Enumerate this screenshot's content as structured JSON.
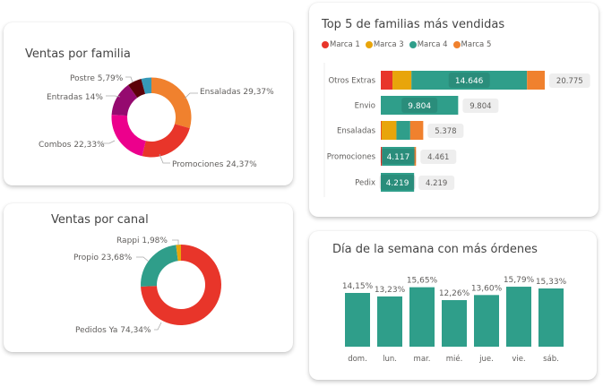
{
  "chart_data": [
    {
      "id": "familia",
      "type": "pie",
      "title": "Ventas por familia",
      "donut": true,
      "slices": [
        {
          "label": "Ensaladas",
          "value": 29.37,
          "display": "Ensaladas 29,37%",
          "color": "#f0812e"
        },
        {
          "label": "Promociones",
          "value": 24.37,
          "display": "Promociones 24,37%",
          "color": "#e8352a"
        },
        {
          "label": "Combos",
          "value": 22.33,
          "display": "Combos 22,33%",
          "color": "#ec008c"
        },
        {
          "label": "Entradas",
          "value": 14.0,
          "display": "Entradas 14%",
          "color": "#950a6f"
        },
        {
          "label": "Postre",
          "value": 5.79,
          "display": "Postre 5,79%",
          "color": "#5c0008"
        },
        {
          "label": "",
          "value": 4.14,
          "display": "",
          "color": "#3599b8"
        }
      ]
    },
    {
      "id": "canal",
      "type": "pie",
      "title": "Ventas por canal",
      "donut": true,
      "slices": [
        {
          "label": "Pedidos Ya",
          "value": 74.34,
          "display": "Pedidos Ya 74,34%",
          "color": "#e8352a"
        },
        {
          "label": "Propio",
          "value": 23.68,
          "display": "Propio 23,68%",
          "color": "#2f9e8a"
        },
        {
          "label": "Rappi",
          "value": 1.98,
          "display": "Rappi 1,98%",
          "color": "#e8a50b"
        }
      ]
    },
    {
      "id": "top5",
      "type": "bar",
      "orientation": "horizontal",
      "stacked": true,
      "title": "Top 5 de familias más vendidas",
      "legend_position": "top-left",
      "categories": [
        "Otros Extras",
        "Envio",
        "Ensaladas",
        "Promociones",
        "Pedix"
      ],
      "series": [
        {
          "name": "Marca 1",
          "color": "#e8352a",
          "values": [
            1480,
            0,
            80,
            150,
            0
          ]
        },
        {
          "name": "Marca 3",
          "color": "#e8a50b",
          "values": [
            2400,
            0,
            1900,
            0,
            0
          ]
        },
        {
          "name": "Marca 4",
          "color": "#2f9e8a",
          "values": [
            14646,
            9804,
            1750,
            4117,
            4219
          ]
        },
        {
          "name": "Marca 5",
          "color": "#f0812e",
          "values": [
            2249,
            0,
            1648,
            194,
            0
          ]
        }
      ],
      "segment_labels": [
        "14.646",
        "9.804",
        "",
        "4.117",
        "4.219"
      ],
      "totals": [
        20775,
        9804,
        5378,
        4461,
        4219
      ],
      "total_labels": [
        "20.775",
        "9.804",
        "5.378",
        "4.461",
        "4.219"
      ],
      "xlim": [
        0,
        20775
      ]
    },
    {
      "id": "dias",
      "type": "bar",
      "orientation": "vertical",
      "title": "Día de la semana con más órdenes",
      "categories": [
        "dom.",
        "lun.",
        "mar.",
        "mié.",
        "jue.",
        "vie.",
        "sáb."
      ],
      "values": [
        14.15,
        13.23,
        15.65,
        12.26,
        13.6,
        15.79,
        15.33
      ],
      "data_labels": [
        "14,15%",
        "13,23%",
        "15,65%",
        "12,26%",
        "13,60%",
        "15,79%",
        "15,33%"
      ],
      "color": "#2f9e8a",
      "ylabel": "",
      "xlabel": "",
      "ylim": [
        0,
        16
      ]
    }
  ]
}
